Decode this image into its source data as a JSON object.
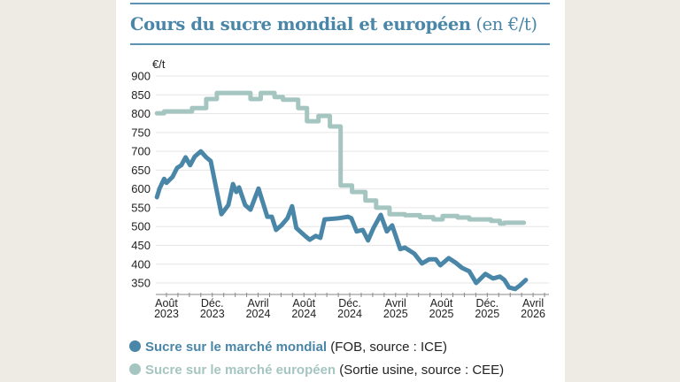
{
  "title": {
    "main": "Cours du sucre mondial et européen",
    "unit": "(en €/t)"
  },
  "colors": {
    "world": "#4a86a8",
    "europe": "#a5c6c0",
    "title": "#4a86a8",
    "grid": "#e6e6e6"
  },
  "legend": [
    {
      "label": "Sucre sur le marché mondial",
      "detail": "(FOB, source : ICE)"
    },
    {
      "label": "Sucre sur le marché européen",
      "detail": "(Sortie usine, source : CEE)"
    }
  ],
  "chart_data": {
    "type": "line",
    "title": "Cours du sucre mondial et européen (en €/t)",
    "ylabel": "€/t",
    "ylim": [
      350,
      900
    ],
    "yticks": [
      "350",
      "400",
      "450",
      "500",
      "550",
      "600",
      "650",
      "700",
      "750",
      "800",
      "850",
      "900"
    ],
    "xticks": [
      {
        "date": "2023-08-01",
        "line1": "Août",
        "line2": "2023"
      },
      {
        "date": "2023-12-01",
        "line1": "Déc.",
        "line2": "2023"
      },
      {
        "date": "2024-04-01",
        "line1": "Avril",
        "line2": "2024"
      },
      {
        "date": "2024-08-01",
        "line1": "Août",
        "line2": "2024"
      },
      {
        "date": "2024-12-01",
        "line1": "Déc.",
        "line2": "2024"
      },
      {
        "date": "2025-04-01",
        "line1": "Avril",
        "line2": "2025"
      },
      {
        "date": "2025-08-01",
        "line1": "Août",
        "line2": "2025"
      },
      {
        "date": "2025-12-01",
        "line1": "Déc.",
        "line2": "2025"
      },
      {
        "date": "2026-04-01",
        "line1": "Avril",
        "line2": "2026"
      }
    ],
    "grid": true,
    "legend_position": "bottom",
    "series": [
      {
        "name": "Sucre sur le marché mondial",
        "style": "line",
        "points": [
          [
            "2023-07-06",
            578
          ],
          [
            "2023-07-13",
            601
          ],
          [
            "2023-07-25",
            627
          ],
          [
            "2023-08-01",
            616
          ],
          [
            "2023-08-17",
            632
          ],
          [
            "2023-08-29",
            656
          ],
          [
            "2023-09-10",
            663
          ],
          [
            "2023-09-21",
            684
          ],
          [
            "2023-10-03",
            663
          ],
          [
            "2023-10-15",
            686
          ],
          [
            "2023-11-01",
            700
          ],
          [
            "2023-11-15",
            684
          ],
          [
            "2023-11-27",
            674
          ],
          [
            "2023-12-25",
            533
          ],
          [
            "2024-01-13",
            557
          ],
          [
            "2024-01-25",
            613
          ],
          [
            "2024-02-04",
            592
          ],
          [
            "2024-02-11",
            604
          ],
          [
            "2024-02-27",
            557
          ],
          [
            "2024-03-11",
            545
          ],
          [
            "2024-04-02",
            601
          ],
          [
            "2024-04-25",
            526
          ],
          [
            "2024-05-07",
            526
          ],
          [
            "2024-05-18",
            491
          ],
          [
            "2024-06-02",
            503
          ],
          [
            "2024-06-18",
            522
          ],
          [
            "2024-06-30",
            554
          ],
          [
            "2024-07-11",
            496
          ],
          [
            "2024-08-04",
            475
          ],
          [
            "2024-08-16",
            465
          ],
          [
            "2024-09-02",
            475
          ],
          [
            "2024-09-14",
            470
          ],
          [
            "2024-09-25",
            519
          ],
          [
            "2024-11-02",
            522
          ],
          [
            "2024-11-26",
            526
          ],
          [
            "2024-12-05",
            522
          ],
          [
            "2024-12-19",
            487
          ],
          [
            "2025-01-05",
            491
          ],
          [
            "2025-01-19",
            463
          ],
          [
            "2025-02-03",
            496
          ],
          [
            "2025-02-22",
            531
          ],
          [
            "2025-03-08",
            487
          ],
          [
            "2025-03-22",
            503
          ],
          [
            "2025-04-13",
            440
          ],
          [
            "2025-04-25",
            444
          ],
          [
            "2025-05-06",
            437
          ],
          [
            "2025-05-20",
            428
          ],
          [
            "2025-06-10",
            402
          ],
          [
            "2025-06-29",
            413
          ],
          [
            "2025-07-16",
            413
          ],
          [
            "2025-07-28",
            397
          ],
          [
            "2025-08-20",
            416
          ],
          [
            "2025-09-08",
            404
          ],
          [
            "2025-09-25",
            390
          ],
          [
            "2025-10-14",
            381
          ],
          [
            "2025-11-02",
            350
          ],
          [
            "2025-11-26",
            374
          ],
          [
            "2025-12-16",
            362
          ],
          [
            "2026-01-04",
            367
          ],
          [
            "2026-01-16",
            358
          ],
          [
            "2026-01-28",
            338
          ],
          [
            "2026-02-14",
            334
          ],
          [
            "2026-02-26",
            343
          ],
          [
            "2026-03-12",
            358
          ]
        ]
      },
      {
        "name": "Sucre sur le marché européen",
        "style": "step",
        "points": [
          [
            "2023-07-06",
            801
          ],
          [
            "2023-07-25",
            806
          ],
          [
            "2023-10-08",
            815
          ],
          [
            "2023-11-15",
            839
          ],
          [
            "2023-12-13",
            855
          ],
          [
            "2024-03-11",
            839
          ],
          [
            "2024-04-08",
            855
          ],
          [
            "2024-05-14",
            844
          ],
          [
            "2024-06-06",
            837
          ],
          [
            "2024-07-16",
            815
          ],
          [
            "2024-08-09",
            780
          ],
          [
            "2024-09-09",
            794
          ],
          [
            "2024-10-09",
            766
          ],
          [
            "2024-11-07",
            609
          ],
          [
            "2024-12-07",
            592
          ],
          [
            "2025-01-12",
            569
          ],
          [
            "2025-02-10",
            550
          ],
          [
            "2025-03-15",
            533
          ],
          [
            "2025-04-25",
            530
          ],
          [
            "2025-06-05",
            525
          ],
          [
            "2025-07-10",
            519
          ],
          [
            "2025-08-04",
            528
          ],
          [
            "2025-09-13",
            524
          ],
          [
            "2025-10-14",
            519
          ],
          [
            "2025-12-11",
            515
          ],
          [
            "2026-01-04",
            508
          ],
          [
            "2026-01-16",
            510
          ],
          [
            "2026-03-07",
            510
          ]
        ]
      }
    ]
  }
}
